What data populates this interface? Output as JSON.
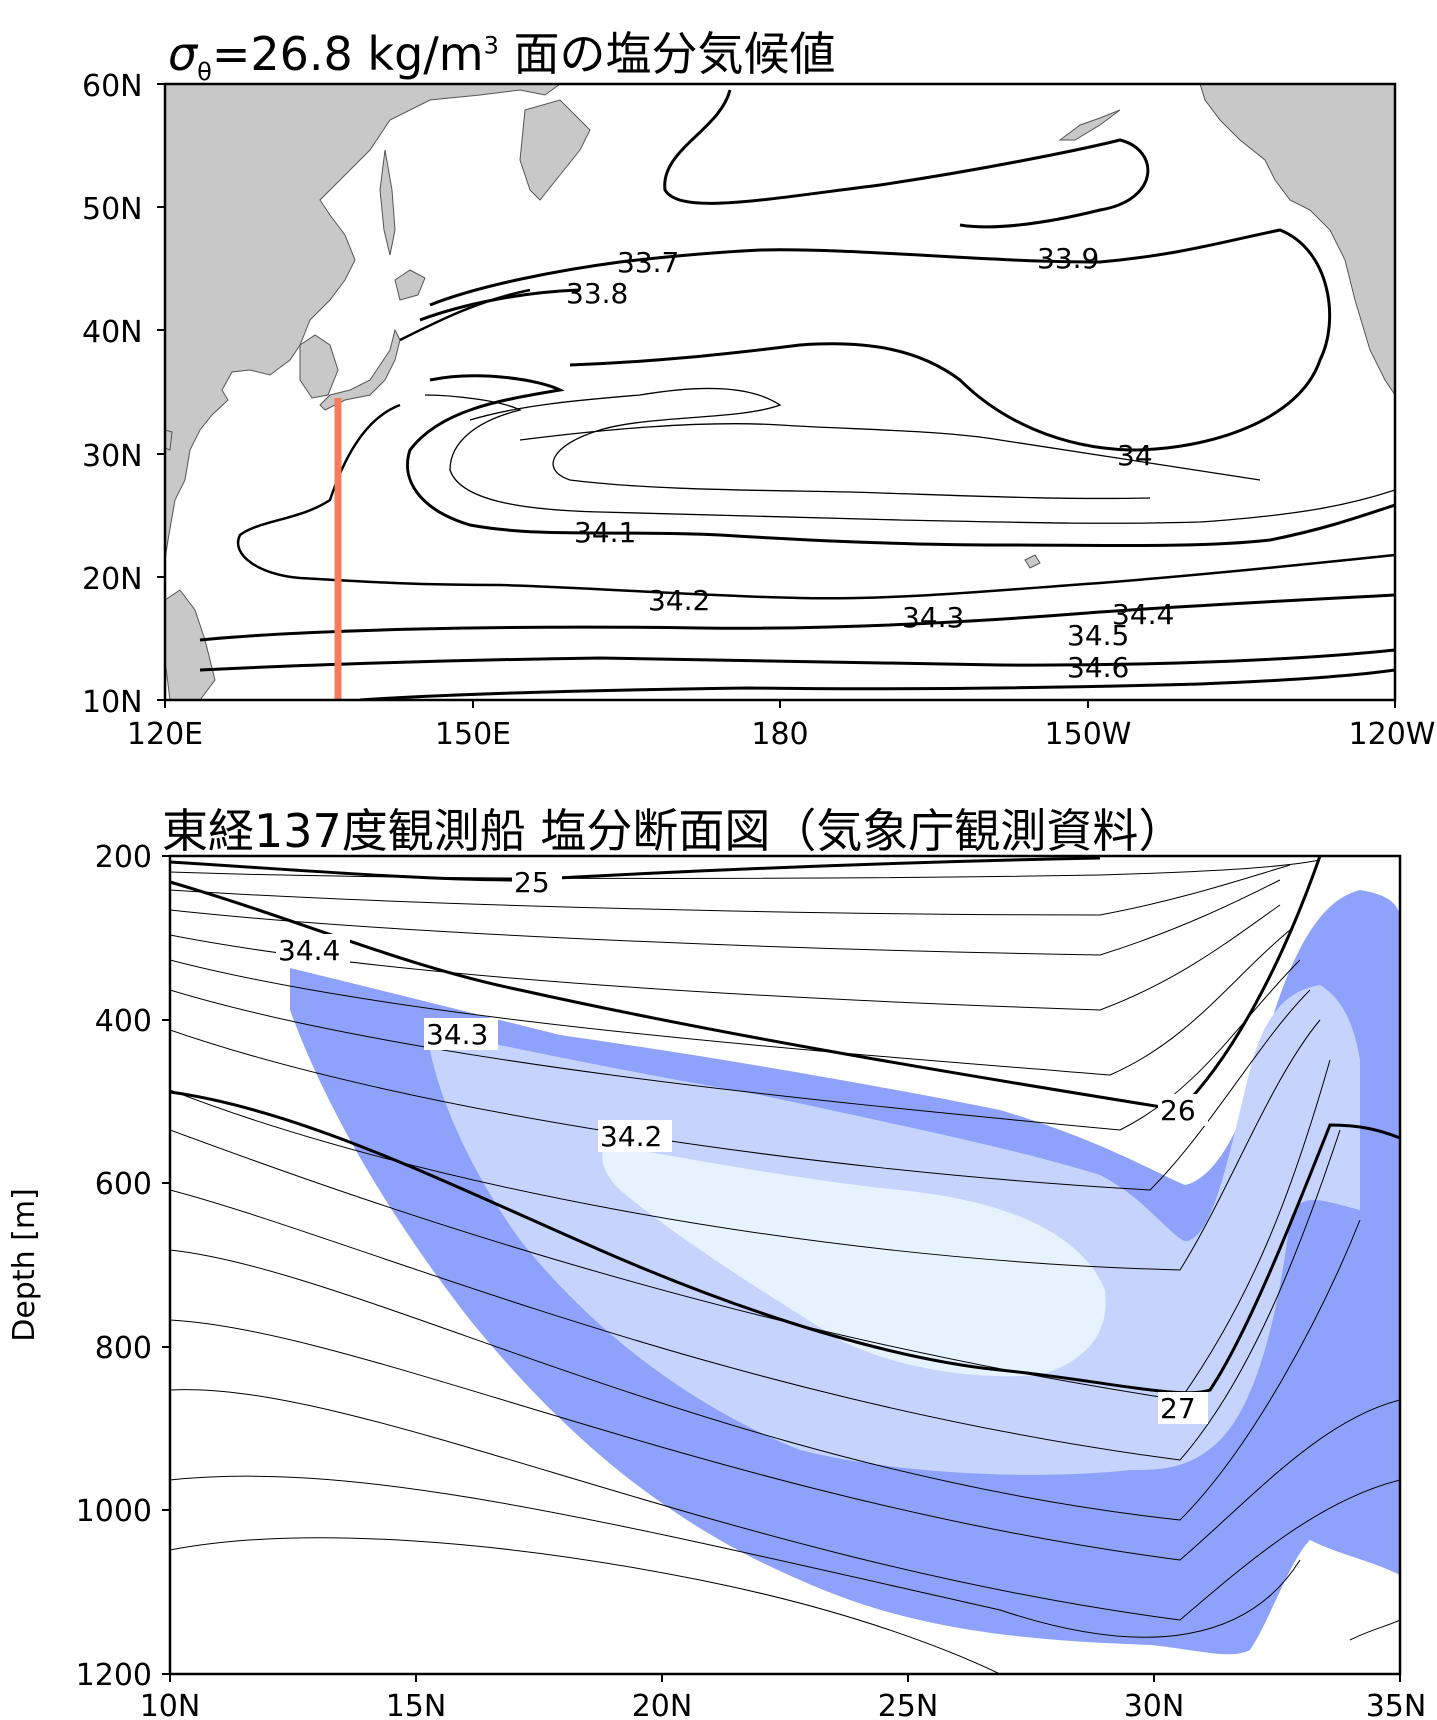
{
  "chart_data": [
    {
      "type": "contour",
      "title_symbol": "σ",
      "title_sub": "θ",
      "title_main": "=26.8 kg/m",
      "title_sup": "3",
      "title_tail": " 面の塩分気候値",
      "x_ticks": [
        "120E",
        "150E",
        "180",
        "150W",
        "120W"
      ],
      "y_ticks": [
        "60N",
        "50N",
        "40N",
        "30N",
        "20N",
        "10N"
      ],
      "xlim": [
        "120E",
        "120W"
      ],
      "ylim": [
        "10N",
        "60N"
      ],
      "contour_labels": [
        "33.7",
        "33.8",
        "33.9",
        "34",
        "34.1",
        "34.2",
        "34.3",
        "34.4",
        "34.5",
        "34.6"
      ],
      "section_line": {
        "lon": "137E",
        "lat_from": "10N",
        "lat_to": "35N",
        "color": "#f47c5a"
      },
      "land_color": "#c8c8c8"
    },
    {
      "type": "contour",
      "title": "東経137度観測船 塩分断面図（気象庁観測資料）",
      "ylabel": "Depth [m]",
      "x_ticks": [
        "10N",
        "15N",
        "20N",
        "25N",
        "30N",
        "35N"
      ],
      "y_ticks": [
        "200",
        "400",
        "600",
        "800",
        "1000",
        "1200"
      ],
      "ylim": [
        200,
        1200
      ],
      "y_inverted": true,
      "salinity_labels": [
        "34.4",
        "34.3",
        "34.2"
      ],
      "density_labels": [
        "25",
        "26",
        "27"
      ],
      "fill_colors": {
        "34.4": "#8ea2fb",
        "34.3": "#c6d4fd",
        "34.2": "#e6f2fe"
      }
    }
  ]
}
